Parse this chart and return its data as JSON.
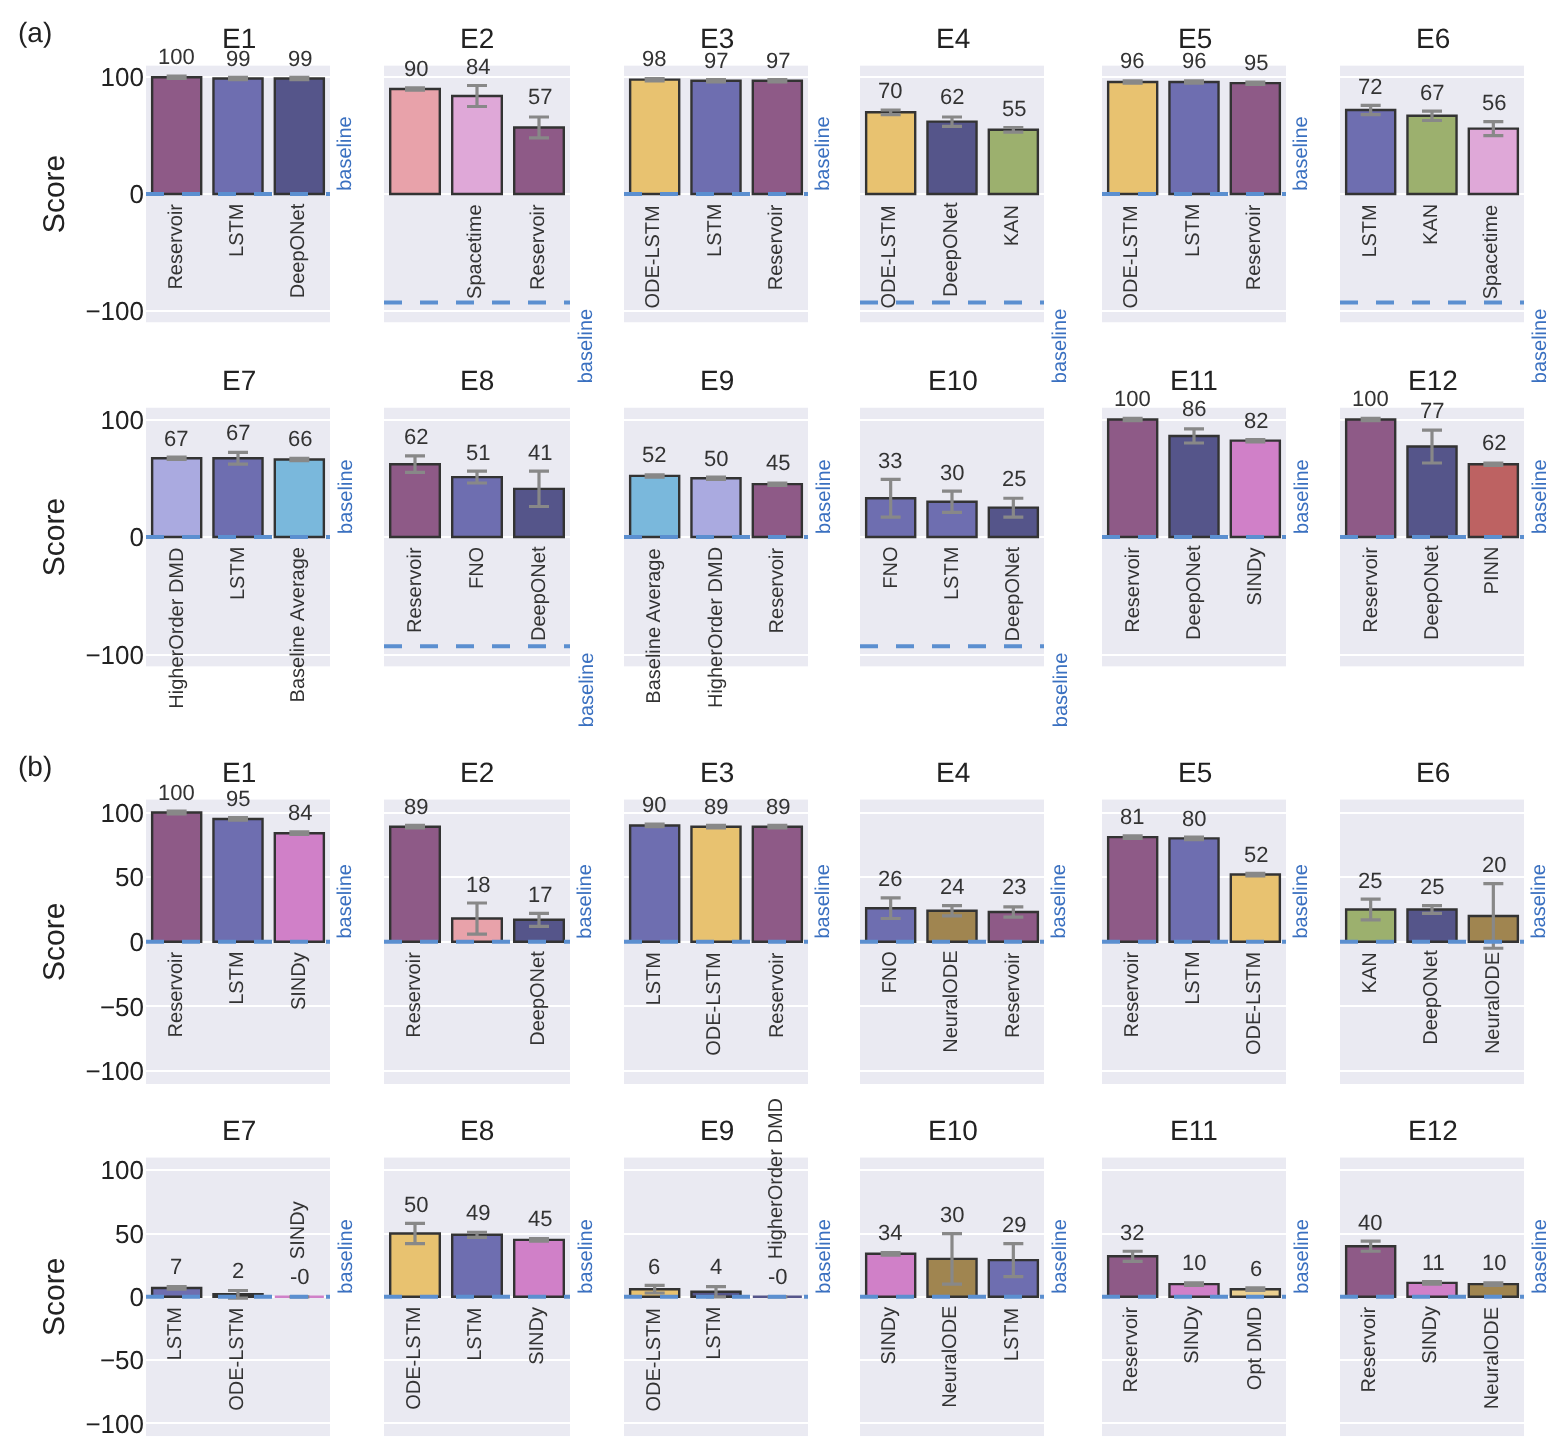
{
  "chart_data": [
    {
      "type": "bar",
      "title": "E1",
      "ylabel": "Score",
      "annotations": [
        "(a)"
      ],
      "categories": [
        "Reservoir",
        "LSTM",
        "DeepONet"
      ],
      "values": [
        100,
        99,
        99
      ],
      "errors": [
        1,
        1,
        1
      ],
      "colors": [
        "#8e5a87",
        "#6e6eb0",
        "#55558a"
      ],
      "ylim": [
        -110,
        110
      ],
      "yticks": [
        -100,
        0,
        100
      ],
      "grid": "y",
      "data_labels": true,
      "ref_lines": [
        {
          "axis": "y",
          "value": 0,
          "label": "baseline",
          "color": "#5b8fd0",
          "line_style": "dashed"
        }
      ]
    },
    {
      "type": "bar",
      "title": "E2",
      "tick_labels": "x",
      "categories": [
        null,
        "Spacetime",
        "Reservoir"
      ],
      "values": [
        90,
        84,
        57
      ],
      "errors": [
        1,
        9,
        9
      ],
      "colors": [
        "#e8a2aa",
        "#dfa8d8",
        "#8e5a87"
      ],
      "ylim": [
        -110,
        110
      ],
      "yticks": [
        -100,
        0,
        100
      ],
      "grid": "y",
      "data_labels": true,
      "ref_lines": [
        {
          "axis": "y",
          "value": -93,
          "label": "baseline",
          "color": "#5b8fd0",
          "line_style": "dashed"
        }
      ]
    },
    {
      "type": "bar",
      "title": "E3",
      "tick_labels": "x",
      "categories": [
        "ODE-LSTM",
        "LSTM",
        "Reservoir"
      ],
      "values": [
        98,
        97,
        97
      ],
      "errors": [
        1,
        1,
        1
      ],
      "colors": [
        "#e8c270",
        "#6e6eb0",
        "#8e5a87"
      ],
      "ylim": [
        -110,
        110
      ],
      "yticks": [
        -100,
        0,
        100
      ],
      "grid": "y",
      "data_labels": true,
      "ref_lines": [
        {
          "axis": "y",
          "value": 0,
          "label": "baseline",
          "color": "#5b8fd0",
          "line_style": "dashed"
        }
      ]
    },
    {
      "type": "bar",
      "title": "E4",
      "tick_labels": "x",
      "categories": [
        "ODE-LSTM",
        "DeepONet",
        "KAN"
      ],
      "values": [
        70,
        62,
        55
      ],
      "errors": [
        2,
        4,
        2
      ],
      "colors": [
        "#e8c270",
        "#55558a",
        "#9cb06e"
      ],
      "ylim": [
        -110,
        110
      ],
      "yticks": [
        -100,
        0,
        100
      ],
      "grid": "y",
      "data_labels": true,
      "ref_lines": [
        {
          "axis": "y",
          "value": -93,
          "label": "baseline",
          "color": "#5b8fd0",
          "line_style": "dashed"
        }
      ]
    },
    {
      "type": "bar",
      "title": "E5",
      "tick_labels": "x",
      "categories": [
        "ODE-LSTM",
        "LSTM",
        "Reservoir"
      ],
      "values": [
        96,
        96,
        95
      ],
      "errors": [
        1,
        1,
        1
      ],
      "colors": [
        "#e8c270",
        "#6e6eb0",
        "#8e5a87"
      ],
      "ylim": [
        -110,
        110
      ],
      "yticks": [
        -100,
        0,
        100
      ],
      "grid": "y",
      "data_labels": true,
      "ref_lines": [
        {
          "axis": "y",
          "value": 0,
          "label": "baseline",
          "color": "#5b8fd0",
          "line_style": "dashed"
        }
      ]
    },
    {
      "type": "bar",
      "title": "E6",
      "tick_labels": "x",
      "categories": [
        "LSTM",
        "KAN",
        "Spacetime"
      ],
      "values": [
        72,
        67,
        56
      ],
      "errors": [
        4,
        4,
        6
      ],
      "colors": [
        "#6e6eb0",
        "#9cb06e",
        "#dfa8d8"
      ],
      "ylim": [
        -110,
        110
      ],
      "yticks": [
        -100,
        0,
        100
      ],
      "grid": "y",
      "data_labels": true,
      "ref_lines": [
        {
          "axis": "y",
          "value": -93,
          "label": "baseline",
          "color": "#5b8fd0",
          "line_style": "dashed"
        }
      ]
    },
    {
      "type": "bar",
      "title": "E7",
      "ylabel": "Score",
      "categories": [
        "HigherOrder DMD",
        "LSTM",
        "Baseline Average"
      ],
      "values": [
        67,
        67,
        66
      ],
      "errors": [
        1,
        5,
        1
      ],
      "colors": [
        "#aaaae0",
        "#6e6eb0",
        "#7ab8dc"
      ],
      "ylim": [
        -110,
        110
      ],
      "yticks": [
        -100,
        0,
        100
      ],
      "grid": "y",
      "data_labels": true,
      "ref_lines": [
        {
          "axis": "y",
          "value": 0,
          "label": "baseline",
          "color": "#5b8fd0",
          "line_style": "dashed"
        }
      ]
    },
    {
      "type": "bar",
      "title": "E8",
      "tick_labels": "x",
      "categories": [
        "Reservoir",
        "FNO",
        "DeepONet"
      ],
      "values": [
        62,
        51,
        41
      ],
      "errors": [
        7,
        5,
        15
      ],
      "colors": [
        "#8e5a87",
        "#6e6eb0",
        "#55558a"
      ],
      "ylim": [
        -110,
        110
      ],
      "yticks": [
        -100,
        0,
        100
      ],
      "grid": "y",
      "data_labels": true,
      "ref_lines": [
        {
          "axis": "y",
          "value": -93,
          "label": "baseline",
          "color": "#5b8fd0",
          "line_style": "dashed"
        }
      ]
    },
    {
      "type": "bar",
      "title": "E9",
      "tick_labels": "x",
      "categories": [
        "Baseline Average",
        "HigherOrder DMD",
        "Reservoir"
      ],
      "values": [
        52,
        50,
        45
      ],
      "errors": [
        1,
        1,
        1
      ],
      "colors": [
        "#7ab8dc",
        "#aaaae0",
        "#8e5a87"
      ],
      "ylim": [
        -110,
        110
      ],
      "yticks": [
        -100,
        0,
        100
      ],
      "grid": "y",
      "data_labels": true,
      "ref_lines": [
        {
          "axis": "y",
          "value": 0,
          "label": "baseline",
          "color": "#5b8fd0",
          "line_style": "dashed"
        }
      ]
    },
    {
      "type": "bar",
      "title": "E10",
      "tick_labels": "x",
      "categories": [
        "FNO",
        "LSTM",
        "DeepONet"
      ],
      "values": [
        33,
        30,
        25
      ],
      "errors": [
        16,
        9,
        8
      ],
      "colors": [
        "#6e6eb0",
        "#6e6eb0",
        "#55558a"
      ],
      "ylim": [
        -110,
        110
      ],
      "yticks": [
        -100,
        0,
        100
      ],
      "grid": "y",
      "data_labels": true,
      "ref_lines": [
        {
          "axis": "y",
          "value": -93,
          "label": "baseline",
          "color": "#5b8fd0",
          "line_style": "dashed"
        }
      ]
    },
    {
      "type": "bar",
      "title": "E11",
      "tick_labels": "x",
      "categories": [
        "Reservoir",
        "DeepONet",
        "SINDy"
      ],
      "values": [
        100,
        86,
        82
      ],
      "errors": [
        1,
        6,
        1
      ],
      "colors": [
        "#8e5a87",
        "#55558a",
        "#d080c8"
      ],
      "ylim": [
        -110,
        110
      ],
      "yticks": [
        -100,
        0,
        100
      ],
      "grid": "y",
      "data_labels": true,
      "ref_lines": [
        {
          "axis": "y",
          "value": 0,
          "label": "baseline",
          "color": "#5b8fd0",
          "line_style": "dashed"
        }
      ]
    },
    {
      "type": "bar",
      "title": "E12",
      "tick_labels": "x",
      "categories": [
        "Reservoir",
        "DeepONet",
        "PINN"
      ],
      "values": [
        100,
        77,
        62
      ],
      "errors": [
        1,
        14,
        1
      ],
      "colors": [
        "#8e5a87",
        "#55558a",
        "#bd6262"
      ],
      "ylim": [
        -110,
        110
      ],
      "yticks": [
        -100,
        0,
        100
      ],
      "grid": "y",
      "data_labels": true,
      "ref_lines": [
        {
          "axis": "y",
          "value": 0,
          "label": "baseline",
          "color": "#5b8fd0",
          "line_style": "dashed"
        }
      ]
    },
    {
      "type": "bar",
      "title": "E1",
      "ylabel": "Score",
      "annotations": [
        "(b)"
      ],
      "categories": [
        "Reservoir",
        "LSTM",
        "SINDy"
      ],
      "values": [
        100,
        95,
        84
      ],
      "errors": [
        1,
        1,
        1
      ],
      "colors": [
        "#8e5a87",
        "#6e6eb0",
        "#d080c8"
      ],
      "ylim": [
        -110,
        110
      ],
      "yticks": [
        -100,
        -50,
        0,
        50,
        100
      ],
      "grid": "y",
      "data_labels": true,
      "ref_lines": [
        {
          "axis": "y",
          "value": 0,
          "label": "baseline",
          "color": "#5b8fd0",
          "line_style": "dashed"
        }
      ]
    },
    {
      "type": "bar",
      "title": "E2",
      "tick_labels": "x",
      "categories": [
        "Reservoir",
        null,
        "DeepONet"
      ],
      "values": [
        89,
        18,
        17
      ],
      "errors": [
        1,
        12,
        5
      ],
      "colors": [
        "#8e5a87",
        "#e8a2aa",
        "#55558a"
      ],
      "ylim": [
        -110,
        110
      ],
      "yticks": [
        -100,
        -50,
        0,
        50,
        100
      ],
      "grid": "y",
      "data_labels": true,
      "ref_lines": [
        {
          "axis": "y",
          "value": 0,
          "label": "baseline",
          "color": "#5b8fd0",
          "line_style": "dashed"
        }
      ]
    },
    {
      "type": "bar",
      "title": "E3",
      "tick_labels": "x",
      "categories": [
        "LSTM",
        "ODE-LSTM",
        "Reservoir"
      ],
      "values": [
        90,
        89,
        89
      ],
      "errors": [
        1,
        1,
        1
      ],
      "colors": [
        "#6e6eb0",
        "#e8c270",
        "#8e5a87"
      ],
      "ylim": [
        -110,
        110
      ],
      "yticks": [
        -100,
        -50,
        0,
        50,
        100
      ],
      "grid": "y",
      "data_labels": true,
      "ref_lines": [
        {
          "axis": "y",
          "value": 0,
          "label": "baseline",
          "color": "#5b8fd0",
          "line_style": "dashed"
        }
      ]
    },
    {
      "type": "bar",
      "title": "E4",
      "tick_labels": "x",
      "categories": [
        "FNO",
        "NeuralODE",
        "Reservoir"
      ],
      "values": [
        26,
        24,
        23
      ],
      "errors": [
        8,
        4,
        4
      ],
      "colors": [
        "#6e6eb0",
        "#a08550",
        "#8e5a87"
      ],
      "ylim": [
        -110,
        110
      ],
      "yticks": [
        -100,
        -50,
        0,
        50,
        100
      ],
      "grid": "y",
      "data_labels": true,
      "ref_lines": [
        {
          "axis": "y",
          "value": 0,
          "label": "baseline",
          "color": "#5b8fd0",
          "line_style": "dashed"
        }
      ]
    },
    {
      "type": "bar",
      "title": "E5",
      "tick_labels": "x",
      "categories": [
        "Reservoir",
        "LSTM",
        "ODE-LSTM"
      ],
      "values": [
        81,
        80,
        52
      ],
      "errors": [
        1,
        1,
        1
      ],
      "colors": [
        "#8e5a87",
        "#6e6eb0",
        "#e8c270"
      ],
      "ylim": [
        -110,
        110
      ],
      "yticks": [
        -100,
        -50,
        0,
        50,
        100
      ],
      "grid": "y",
      "data_labels": true,
      "ref_lines": [
        {
          "axis": "y",
          "value": 0,
          "label": "baseline",
          "color": "#5b8fd0",
          "line_style": "dashed"
        }
      ]
    },
    {
      "type": "bar",
      "title": "E6",
      "tick_labels": "x",
      "categories": [
        "KAN",
        "DeepONet",
        "NeuralODE"
      ],
      "values": [
        25,
        25,
        20
      ],
      "errors": [
        8,
        3,
        25
      ],
      "colors": [
        "#9cb06e",
        "#55558a",
        "#a08550"
      ],
      "ylim": [
        -110,
        110
      ],
      "yticks": [
        -100,
        -50,
        0,
        50,
        100
      ],
      "grid": "y",
      "data_labels": true,
      "ref_lines": [
        {
          "axis": "y",
          "value": 0,
          "label": "baseline",
          "color": "#5b8fd0",
          "line_style": "dashed"
        }
      ]
    },
    {
      "type": "bar",
      "title": "E7",
      "ylabel": "Score",
      "categories": [
        "LSTM",
        "ODE-LSTM",
        "SINDy"
      ],
      "values": [
        7,
        2,
        0
      ],
      "errors": [
        1,
        3,
        0
      ],
      "value_labels": [
        "7",
        "2",
        "-0"
      ],
      "colors": [
        "#6e6eb0",
        "#55558a",
        "#d080c8"
      ],
      "ylim": [
        -110,
        110
      ],
      "yticks": [
        -100,
        -50,
        0,
        50,
        100
      ],
      "grid": "y",
      "ref_lines": [
        {
          "axis": "y",
          "value": 0,
          "label": "baseline",
          "color": "#5b8fd0",
          "line_style": "dashed"
        }
      ]
    },
    {
      "type": "bar",
      "title": "E8",
      "tick_labels": "x",
      "categories": [
        "ODE-LSTM",
        "LSTM",
        "SINDy"
      ],
      "values": [
        50,
        49,
        45
      ],
      "errors": [
        8,
        2,
        1
      ],
      "colors": [
        "#e8c270",
        "#6e6eb0",
        "#d080c8"
      ],
      "ylim": [
        -110,
        110
      ],
      "yticks": [
        -100,
        -50,
        0,
        50,
        100
      ],
      "grid": "y",
      "data_labels": true,
      "ref_lines": [
        {
          "axis": "y",
          "value": 0,
          "label": "baseline",
          "color": "#5b8fd0",
          "line_style": "dashed"
        }
      ]
    },
    {
      "type": "bar",
      "title": "E9",
      "tick_labels": "x",
      "categories": [
        "ODE-LSTM",
        "LSTM",
        "HigherOrder DMD"
      ],
      "values": [
        6,
        4,
        0
      ],
      "errors": [
        3,
        4,
        0
      ],
      "value_labels": [
        "6",
        "4",
        "-0"
      ],
      "colors": [
        "#e8c270",
        "#55558a",
        "#55558a"
      ],
      "ylim": [
        -110,
        110
      ],
      "yticks": [
        -100,
        -50,
        0,
        50,
        100
      ],
      "grid": "y",
      "ref_lines": [
        {
          "axis": "y",
          "value": 0,
          "label": "baseline",
          "color": "#5b8fd0",
          "line_style": "dashed"
        }
      ]
    },
    {
      "type": "bar",
      "title": "E10",
      "tick_labels": "x",
      "categories": [
        "SINDy",
        "NeuralODE",
        "LSTM"
      ],
      "values": [
        34,
        30,
        29
      ],
      "errors": [
        1,
        20,
        13
      ],
      "colors": [
        "#d080c8",
        "#a08550",
        "#6e6eb0"
      ],
      "ylim": [
        -110,
        110
      ],
      "yticks": [
        -100,
        -50,
        0,
        50,
        100
      ],
      "grid": "y",
      "data_labels": true,
      "ref_lines": [
        {
          "axis": "y",
          "value": 0,
          "label": "baseline",
          "color": "#5b8fd0",
          "line_style": "dashed"
        }
      ]
    },
    {
      "type": "bar",
      "title": "E11",
      "tick_labels": "x",
      "categories": [
        "Reservoir",
        "SINDy",
        "Opt DMD"
      ],
      "values": [
        32,
        10,
        6
      ],
      "errors": [
        4,
        1,
        1
      ],
      "colors": [
        "#8e5a87",
        "#d080c8",
        "#ecd090"
      ],
      "ylim": [
        -110,
        110
      ],
      "yticks": [
        -100,
        -50,
        0,
        50,
        100
      ],
      "grid": "y",
      "data_labels": true,
      "ref_lines": [
        {
          "axis": "y",
          "value": 0,
          "label": "baseline",
          "color": "#5b8fd0",
          "line_style": "dashed"
        }
      ]
    },
    {
      "type": "bar",
      "title": "E12",
      "tick_labels": "x",
      "categories": [
        "Reservoir",
        "SINDy",
        "NeuralODE"
      ],
      "values": [
        40,
        11,
        10
      ],
      "errors": [
        4,
        1,
        1
      ],
      "colors": [
        "#8e5a87",
        "#d080c8",
        "#a08550"
      ],
      "ylim": [
        -110,
        110
      ],
      "yticks": [
        -100,
        -50,
        0,
        50,
        100
      ],
      "grid": "y",
      "data_labels": true,
      "ref_lines": [
        {
          "axis": "y",
          "value": 0,
          "label": "baseline",
          "color": "#5b8fd0",
          "line_style": "dashed"
        }
      ]
    }
  ]
}
